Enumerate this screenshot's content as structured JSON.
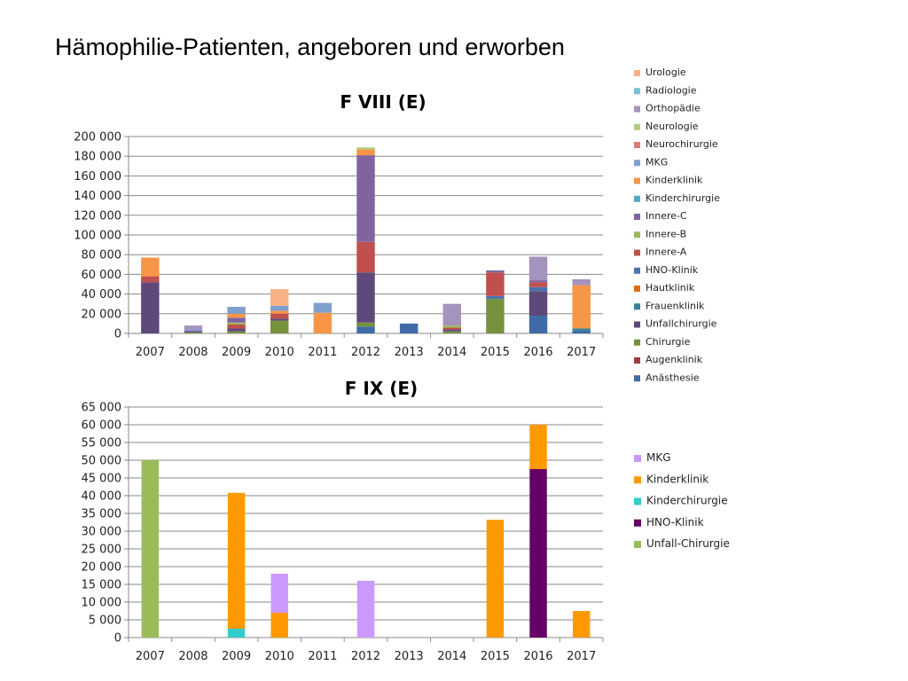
{
  "slide": {
    "title": "Hämophilie-Patienten, angeboren und erworben"
  },
  "chart_data": [
    {
      "type": "bar",
      "stacked": true,
      "title": "F VIII (E)",
      "categories": [
        "2007",
        "2008",
        "2009",
        "2010",
        "2011",
        "2012",
        "2013",
        "2014",
        "2015",
        "2016",
        "2017"
      ],
      "ylim": [
        0,
        200000
      ],
      "yticks": [
        "0",
        "20 000",
        "40 000",
        "60 000",
        "80 000",
        "100 000",
        "120 000",
        "140 000",
        "160 000",
        "180 000",
        "200 000"
      ],
      "grid": true,
      "legend_position": "right",
      "series": [
        {
          "name": "Anästhesie",
          "color": "#3f6aa6",
          "values": [
            0,
            0,
            0,
            0,
            0,
            7000,
            10000,
            0,
            0,
            18000,
            3000
          ]
        },
        {
          "name": "Augenklinik",
          "color": "#a33d3c",
          "values": [
            0,
            0,
            0,
            0,
            0,
            0,
            0,
            0,
            0,
            0,
            0
          ]
        },
        {
          "name": "Chirurgie",
          "color": "#76923c",
          "values": [
            0,
            1000,
            2000,
            13000,
            0,
            4000,
            0,
            2000,
            35000,
            0,
            0
          ]
        },
        {
          "name": "Unfallchirurgie",
          "color": "#5f497a",
          "values": [
            52000,
            1500,
            3000,
            2000,
            0,
            51000,
            0,
            2000,
            0,
            25000,
            0
          ]
        },
        {
          "name": "Frauenklinik",
          "color": "#31859c",
          "values": [
            0,
            0,
            0,
            0,
            0,
            0,
            0,
            0,
            0,
            0,
            2000
          ]
        },
        {
          "name": "Hautklinik",
          "color": "#e36c09",
          "values": [
            0,
            0,
            0,
            0,
            0,
            0,
            0,
            0,
            0,
            0,
            0
          ]
        },
        {
          "name": "HNO-Klinik",
          "color": "#4a73b0",
          "values": [
            0,
            0,
            0,
            0,
            0,
            0,
            0,
            0,
            3000,
            4000,
            0
          ]
        },
        {
          "name": "Innere-A",
          "color": "#c0504d",
          "values": [
            6000,
            0,
            4000,
            5000,
            0,
            31000,
            0,
            2000,
            24000,
            5000,
            0
          ]
        },
        {
          "name": "Innere-B",
          "color": "#9bbb59",
          "values": [
            0,
            0,
            2000,
            0,
            0,
            0,
            0,
            2000,
            0,
            0,
            0
          ]
        },
        {
          "name": "Innere-C",
          "color": "#8064a2",
          "values": [
            0,
            0,
            5000,
            0,
            0,
            88000,
            0,
            0,
            2000,
            2000,
            0
          ]
        },
        {
          "name": "Kinderchirurgie",
          "color": "#4bacc6",
          "values": [
            0,
            0,
            0,
            0,
            0,
            0,
            0,
            0,
            0,
            0,
            0
          ]
        },
        {
          "name": "Kinderklinik",
          "color": "#f79646",
          "values": [
            19000,
            0,
            4000,
            3000,
            21000,
            6000,
            0,
            0,
            0,
            0,
            44000
          ]
        },
        {
          "name": "MKG",
          "color": "#7f9fcf",
          "values": [
            0,
            1500,
            7000,
            5000,
            10000,
            0,
            0,
            0,
            0,
            0,
            0
          ]
        },
        {
          "name": "Neurochirurgie",
          "color": "#e07a77",
          "values": [
            0,
            0,
            0,
            0,
            0,
            0,
            0,
            0,
            0,
            0,
            0
          ]
        },
        {
          "name": "Neurologie",
          "color": "#b4cd85",
          "values": [
            0,
            0,
            0,
            0,
            0,
            2000,
            0,
            0,
            0,
            0,
            0
          ]
        },
        {
          "name": "Orthopädie",
          "color": "#a493bd",
          "values": [
            0,
            4000,
            0,
            0,
            0,
            0,
            0,
            22000,
            0,
            24000,
            6000
          ]
        },
        {
          "name": "Radiologie",
          "color": "#78c0d4",
          "values": [
            0,
            0,
            0,
            0,
            0,
            0,
            0,
            0,
            0,
            0,
            0
          ]
        },
        {
          "name": "Urologie",
          "color": "#f9b183",
          "values": [
            0,
            0,
            0,
            17000,
            0,
            0,
            0,
            0,
            0,
            0,
            0
          ]
        }
      ],
      "legend_order": [
        "Urologie",
        "Radiologie",
        "Orthopädie",
        "Neurologie",
        "Neurochirurgie",
        "MKG",
        "Kinderklinik",
        "Kinderchirurgie",
        "Innere-C",
        "Innere-B",
        "Innere-A",
        "HNO-Klinik",
        "Hautklinik",
        "Frauenklinik",
        "Unfallchirurgie",
        "Chirurgie",
        "Augenklinik",
        "Anästhesie"
      ]
    },
    {
      "type": "bar",
      "stacked": true,
      "title": "F IX (E)",
      "categories": [
        "2007",
        "2008",
        "2009",
        "2010",
        "2011",
        "2012",
        "2013",
        "2014",
        "2015",
        "2016",
        "2017"
      ],
      "ylim": [
        0,
        65000
      ],
      "yticks": [
        "0",
        "5 000",
        "10 000",
        "15 000",
        "20 000",
        "25 000",
        "30 000",
        "35 000",
        "40 000",
        "45 000",
        "50 000",
        "55 000",
        "60 000",
        "65 000"
      ],
      "grid": true,
      "legend_position": "right",
      "series": [
        {
          "name": "Unfall-Chirurgie",
          "color": "#9bbb59",
          "values": [
            50000,
            0,
            0,
            0,
            0,
            0,
            0,
            0,
            0,
            0,
            0
          ]
        },
        {
          "name": "HNO-Klinik",
          "color": "#660066",
          "values": [
            0,
            0,
            0,
            0,
            0,
            0,
            0,
            0,
            0,
            47500,
            0
          ]
        },
        {
          "name": "Kinderchirurgie",
          "color": "#33cccc",
          "values": [
            0,
            0,
            2500,
            0,
            0,
            0,
            0,
            0,
            0,
            0,
            0
          ]
        },
        {
          "name": "Kinderklinik",
          "color": "#ff9900",
          "values": [
            0,
            0,
            38300,
            7000,
            0,
            0,
            0,
            0,
            33200,
            12500,
            7500
          ]
        },
        {
          "name": "MKG",
          "color": "#cc99ff",
          "values": [
            0,
            0,
            0,
            11000,
            0,
            16000,
            0,
            0,
            0,
            0,
            0
          ]
        }
      ],
      "legend_order": [
        "MKG",
        "Kinderklinik",
        "Kinderchirurgie",
        "HNO-Klinik",
        "Unfall-Chirurgie"
      ]
    }
  ]
}
